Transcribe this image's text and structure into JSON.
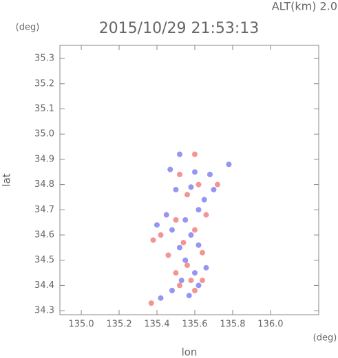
{
  "chart_data": {
    "type": "scatter",
    "title": "2015/10/29 21:53:13",
    "subtitle": "ALT(km) 2.0",
    "x_label": "lon",
    "y_label": "lat",
    "x_unit": "(deg)",
    "y_unit": "(deg)",
    "xlim": [
      134.887,
      136.255
    ],
    "ylim": [
      34.284,
      35.352
    ],
    "xticks": [
      {
        "value": 135.0,
        "label": "135.0"
      },
      135.2,
      135.4,
      135.6,
      135.8,
      {
        "value": 136.0,
        "label": "136.0"
      }
    ],
    "yticks": [
      34.3,
      34.4,
      34.5,
      34.6,
      34.7,
      34.8,
      34.9,
      {
        "value": 35.0,
        "label": "35.0"
      },
      35.1,
      35.2,
      35.3
    ],
    "series": [
      {
        "color": "#7b7bf0",
        "x": [
          135.52,
          135.47,
          135.6,
          135.68,
          135.78,
          135.5,
          135.58,
          135.7,
          135.65,
          135.45,
          135.55,
          135.62,
          135.48,
          135.58,
          135.52,
          135.62,
          135.55,
          135.6,
          135.53,
          135.62,
          135.48,
          135.42,
          135.57,
          135.66,
          135.4
        ],
        "values": [
          34.92,
          34.86,
          34.85,
          34.84,
          34.88,
          34.78,
          34.79,
          34.78,
          34.74,
          34.68,
          34.66,
          34.7,
          34.62,
          34.6,
          34.55,
          34.56,
          34.5,
          34.45,
          34.42,
          34.4,
          34.38,
          34.35,
          34.36,
          34.47,
          34.64
        ]
      },
      {
        "color": "#f07b7b",
        "x": [
          135.52,
          135.62,
          135.72,
          135.56,
          135.42,
          135.38,
          135.5,
          135.6,
          135.66,
          135.54,
          135.64,
          135.56,
          135.5,
          135.58,
          135.64,
          135.52,
          135.6,
          135.37,
          135.6,
          135.46
        ],
        "values": [
          34.84,
          34.8,
          34.8,
          34.76,
          34.6,
          34.58,
          34.66,
          34.62,
          34.68,
          34.57,
          34.53,
          34.48,
          34.45,
          34.42,
          34.42,
          34.4,
          34.38,
          34.33,
          34.92,
          34.52
        ]
      }
    ]
  }
}
